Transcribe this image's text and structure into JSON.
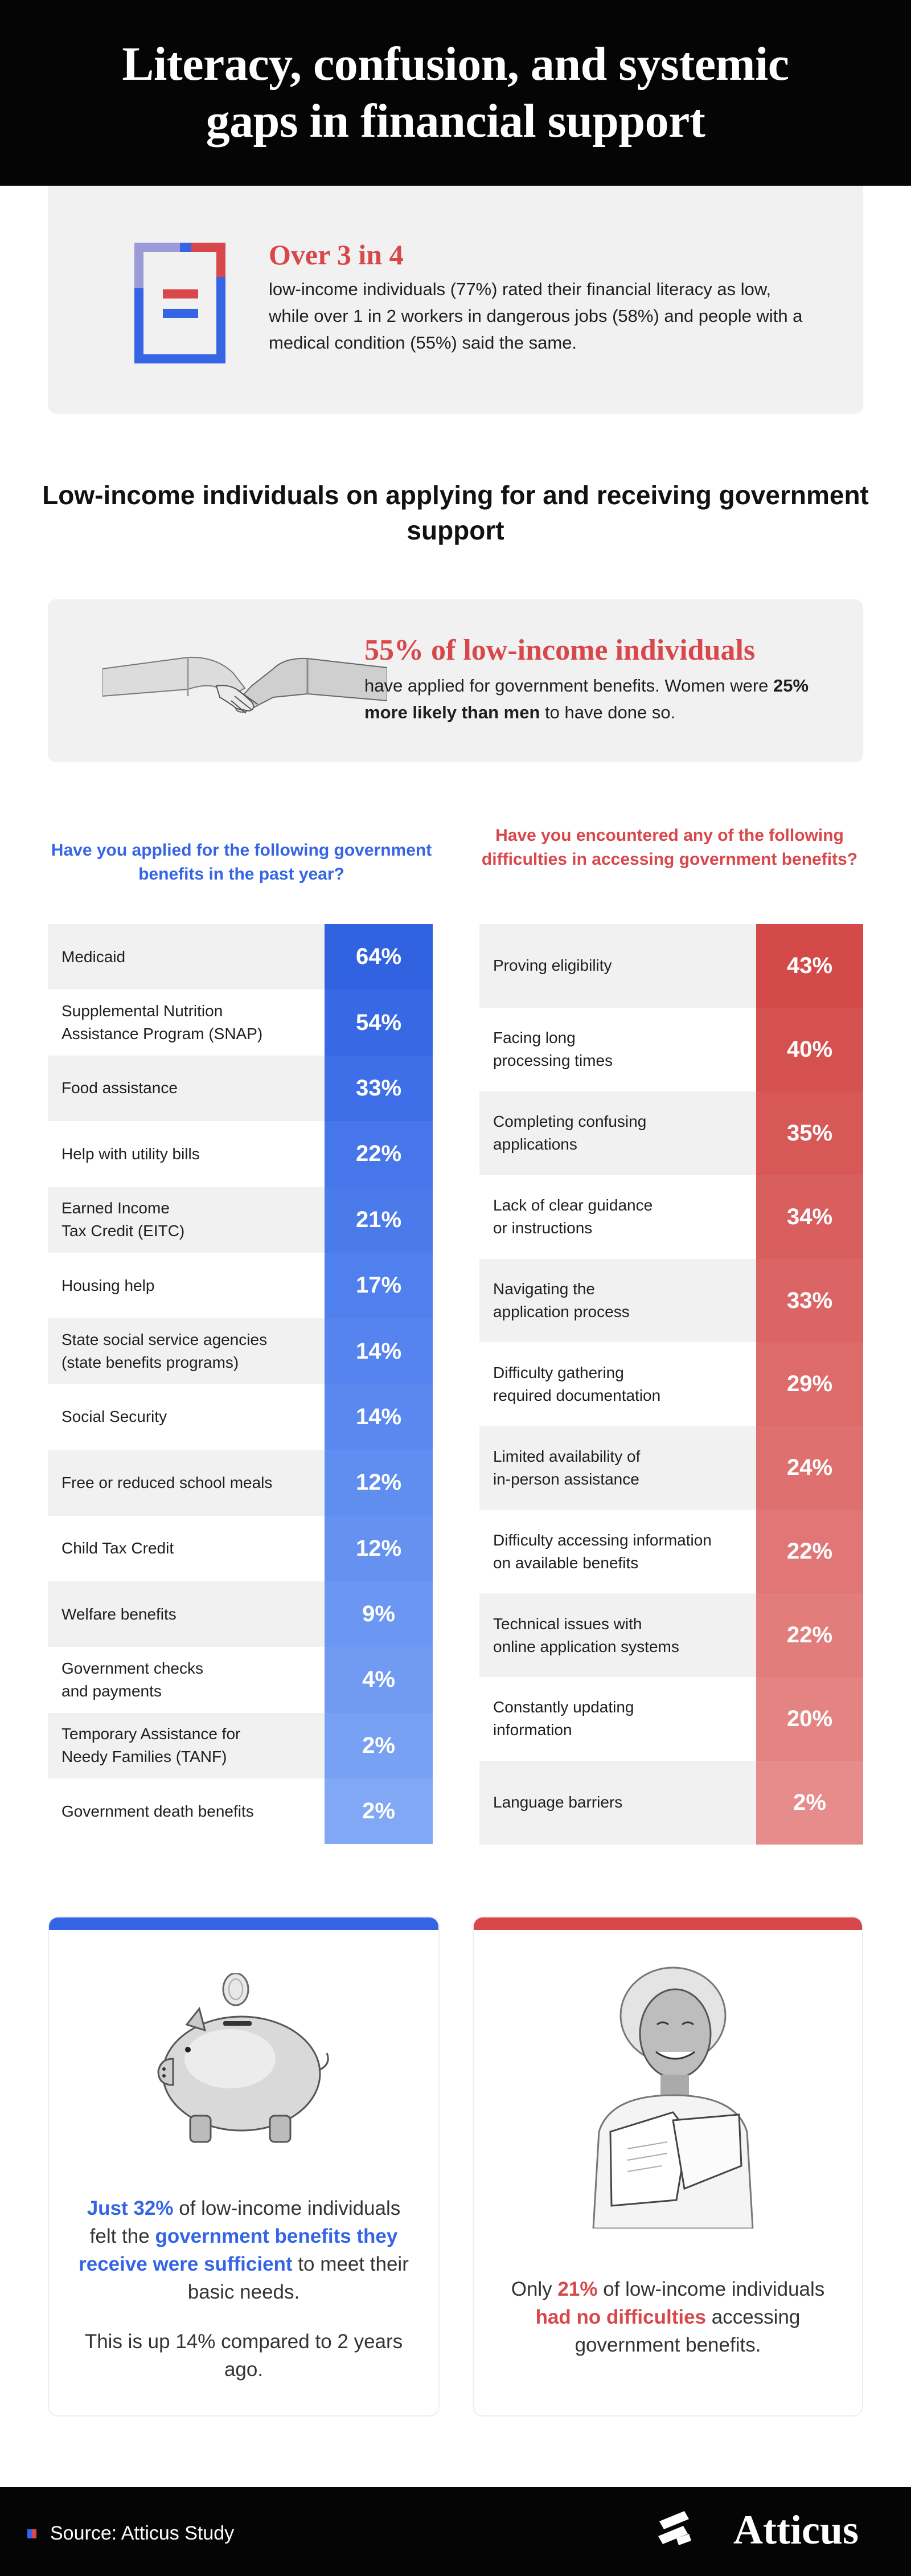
{
  "header": {
    "title": "Literacy, confusion, and systemic gaps in financial support"
  },
  "literacy": {
    "heading": "Over 3 in 4",
    "body": "low-income individuals (77%) rated their financial literacy as low, while over 1 in 2 workers in dangerous jobs (58%) and people with a medical condition (55%) said the same."
  },
  "section": {
    "title": "Low-income individuals on applying for and receiving government support"
  },
  "applied": {
    "heading": "55% of low-income individuals",
    "body_1": "have applied for government benefits. Women were ",
    "body_bold": "25% more likely than men",
    "body_2": " to have done so."
  },
  "colors": {
    "blue": "#3565e5",
    "red": "#d8474a",
    "dark": "#050505",
    "light_gray": "#f1f1f1"
  },
  "chart_data": [
    {
      "type": "table",
      "title": "Have you applied for the following government benefits in the past year?",
      "categories": [
        "Medicaid",
        "Supplemental Nutrition Assistance Program (SNAP)",
        "Food assistance",
        "Help with utility bills",
        "Earned Income Tax Credit (EITC)",
        "Housing help",
        "State social service agencies (state benefits programs)",
        "Social Security",
        "Free or reduced school meals",
        "Child Tax Credit",
        "Welfare benefits",
        "Government checks and payments",
        "Temporary Assistance for Needy Families (TANF)",
        "Government death benefits"
      ],
      "labels": [
        "Medicaid",
        "Supplemental Nutrition\nAssistance Program (SNAP)",
        "Food assistance",
        "Help with utility bills",
        "Earned Income\nTax Credit (EITC)",
        "Housing help",
        "State social service agencies\n(state benefits programs)",
        "Social Security",
        "Free or reduced school meals",
        "Child Tax Credit",
        "Welfare benefits",
        "Government checks\nand payments",
        "Temporary Assistance for\nNeedy Families (TANF)",
        "Government death benefits"
      ],
      "values": [
        64,
        54,
        33,
        22,
        21,
        17,
        14,
        14,
        12,
        12,
        9,
        4,
        2,
        2
      ],
      "unit": "%",
      "colors": [
        "#3162e0",
        "#3868e4",
        "#3f6fe8",
        "#4676ea",
        "#4b7aeb",
        "#5080ed",
        "#5584ee",
        "#5a88ef",
        "#5f8df0",
        "#6592f1",
        "#6b97f2",
        "#719bf2",
        "#78a1f3",
        "#80a8f4"
      ]
    },
    {
      "type": "table",
      "title": "Have you encountered any of the following difficulties in accessing government benefits?",
      "categories": [
        "Proving eligibility",
        "Facing long processing times",
        "Completing confusing applications",
        "Lack of clear guidance or instructions",
        "Navigating the application process",
        "Difficulty gathering required documentation",
        "Limited availability of in-person assistance",
        "Difficulty accessing information on available benefits",
        "Technical issues with online application systems",
        "Constantly updating information",
        "Language barriers"
      ],
      "labels": [
        "Proving eligibility",
        "Facing long\nprocessing times",
        "Completing confusing\napplications",
        "Lack of clear guidance\nor instructions",
        "Navigating the\napplication process",
        "Difficulty gathering\nrequired documentation",
        "Limited availability of\nin-person assistance",
        "Difficulty accessing information\non available benefits",
        "Technical issues with\nonline application systems",
        "Constantly updating\ninformation",
        "Language barriers"
      ],
      "values": [
        43,
        40,
        35,
        34,
        33,
        29,
        24,
        22,
        22,
        20,
        2
      ],
      "unit": "%",
      "colors": [
        "#d34a48",
        "#d55150",
        "#d75857",
        "#d95e5e",
        "#da6564",
        "#dc6b6a",
        "#de7170",
        "#e07776",
        "#e27d7c",
        "#e38382",
        "#e68c8b"
      ]
    }
  ],
  "card_sufficient": {
    "line1_highlight": "Just 32%",
    "line1_rest": " of low-income individuals felt the ",
    "line2_highlight": "government benefits they receive were sufficient",
    "line2_rest": " to meet their basic needs.",
    "note": "This is up 14% compared to 2 years ago."
  },
  "card_difficulties": {
    "part1": "Only ",
    "highlight1": "21%",
    "part2": " of low-income individuals ",
    "highlight2": "had no difficulties",
    "part3": " accessing government benefits."
  },
  "footer": {
    "source": "Source: Atticus Study",
    "logo": "Atticus"
  }
}
